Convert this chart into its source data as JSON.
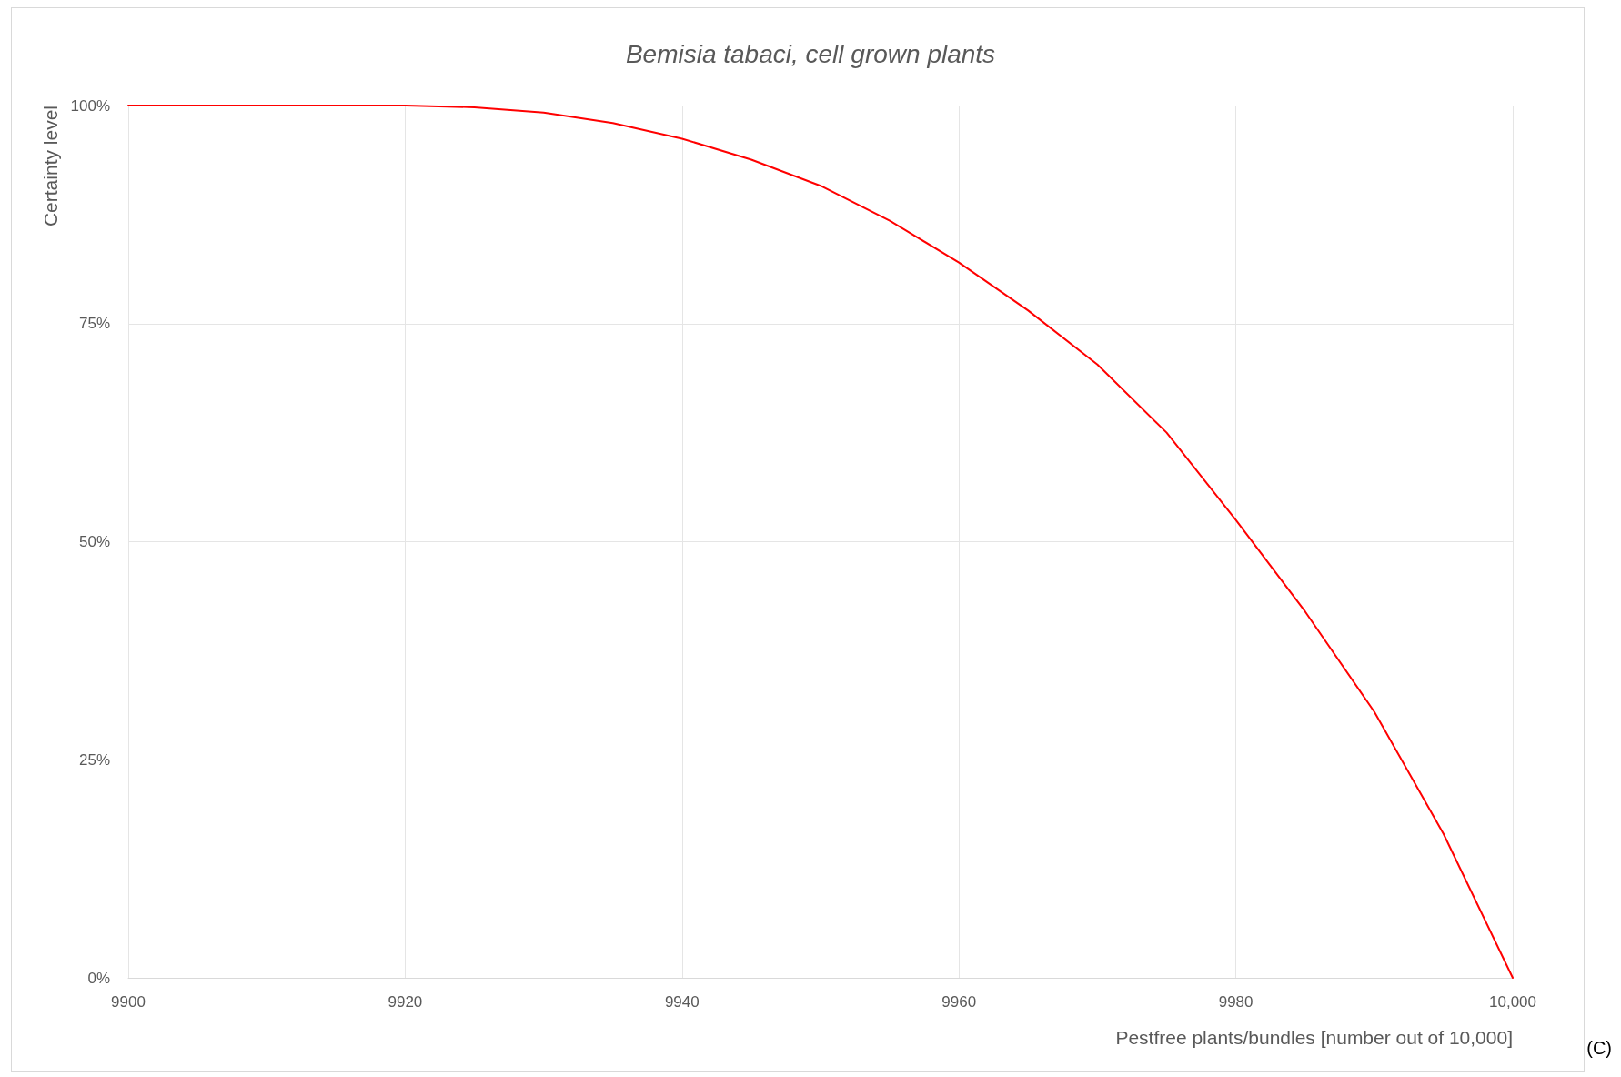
{
  "chart_data": {
    "type": "line",
    "title": "Bemisia tabaci, cell grown plants",
    "xlabel": "Pestfree plants/bundles [number out of 10,000]",
    "ylabel": "Certainty level",
    "annotations": [
      "(C)"
    ],
    "x": [
      9900,
      9905,
      9910,
      9915,
      9920,
      9925,
      9930,
      9935,
      9940,
      9945,
      9950,
      9955,
      9960,
      9965,
      9970,
      9975,
      9980,
      9985,
      9990,
      9995,
      10000
    ],
    "series": [
      {
        "color": "#ff0000",
        "values": [
          100,
          100,
          100,
          100,
          100,
          99.8,
          99.2,
          98,
          96.2,
          93.8,
          90.8,
          86.8,
          82,
          76.5,
          70.3,
          62.5,
          52.5,
          42,
          30.5,
          16.5,
          0
        ]
      }
    ],
    "xlim": [
      9900,
      10000
    ],
    "xticks": [
      9900,
      9920,
      9940,
      9960,
      9980,
      {
        "value": 10000,
        "label": "10,000"
      }
    ],
    "ylim": [
      0,
      100
    ],
    "yticks": [
      {
        "value": 0,
        "label": "0%"
      },
      {
        "value": 25,
        "label": "25%"
      },
      {
        "value": 50,
        "label": "50%"
      },
      {
        "value": 75,
        "label": "75%"
      },
      {
        "value": 100,
        "label": "100%"
      }
    ],
    "grid": true,
    "marker": "none",
    "line_style": "solid"
  }
}
